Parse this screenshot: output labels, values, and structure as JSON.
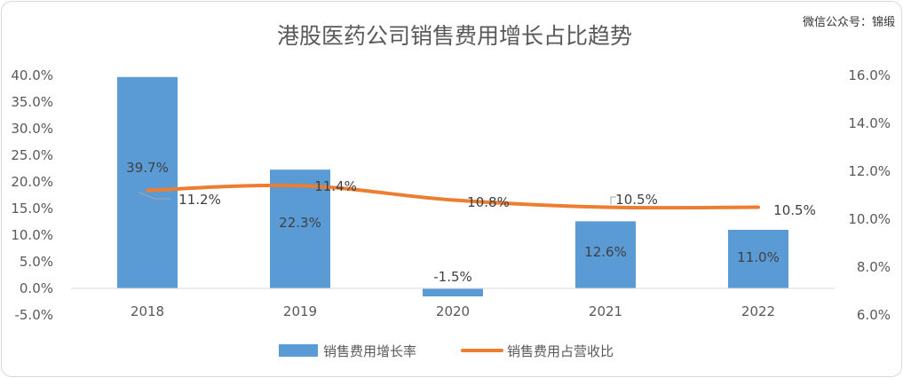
{
  "chart_data": {
    "type": "bar",
    "title": "港股医药公司销售费用增长占比趋势",
    "categories": [
      "2018",
      "2019",
      "2020",
      "2021",
      "2022"
    ],
    "series": [
      {
        "name": "销售费用增长率",
        "type": "bar",
        "axis": "left",
        "values": [
          39.7,
          22.3,
          -1.5,
          12.6,
          11.0
        ],
        "labels": [
          "39.7%",
          "22.3%",
          "-1.5%",
          "12.6%",
          "11.0%"
        ],
        "color": "#5b9bd5"
      },
      {
        "name": "销售费用占营收比",
        "type": "line",
        "axis": "right",
        "values": [
          11.2,
          11.4,
          10.8,
          10.5,
          10.5
        ],
        "labels": [
          "11.2%",
          "11.4%",
          "10.8%",
          "10.5%",
          "10.5%"
        ],
        "color": "#ed7d31"
      }
    ],
    "y_left": {
      "min": -5,
      "max": 40,
      "step": 5,
      "tick_labels": [
        "-5.0%",
        "0.0%",
        "5.0%",
        "10.0%",
        "15.0%",
        "20.0%",
        "25.0%",
        "30.0%",
        "35.0%",
        "40.0%"
      ]
    },
    "y_right": {
      "min": 6,
      "max": 16,
      "step": 2,
      "tick_labels": [
        "6.0%",
        "8.0%",
        "10.0%",
        "12.0%",
        "14.0%",
        "16.0%"
      ]
    },
    "grid": false,
    "legend_position": "bottom"
  },
  "watermark": "微信公众号：锦缎"
}
